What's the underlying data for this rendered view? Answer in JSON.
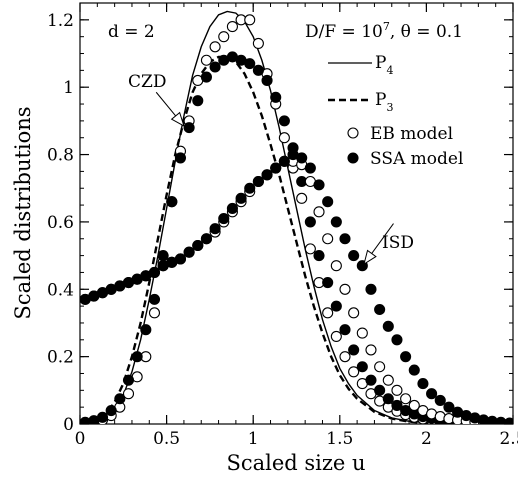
{
  "chart_data": {
    "type": "line",
    "xlabel": "Scaled size u",
    "ylabel": "Scaled distributions",
    "xlim": [
      0,
      2.5
    ],
    "ylim": [
      0,
      1.25
    ],
    "xticks": [
      "0",
      "0.5",
      "1",
      "1.5",
      "2",
      "2.5"
    ],
    "yticks": [
      "0",
      "0.2",
      "0.4",
      "0.6",
      "0.8",
      "1",
      "1.2"
    ],
    "x_tick_values": [
      0,
      0.5,
      1,
      1.5,
      2,
      2.5
    ],
    "y_tick_values": [
      0,
      0.2,
      0.4,
      0.6,
      0.8,
      1,
      1.2
    ],
    "minor_x_step": 0.1,
    "minor_y_step": 0.05,
    "legend_position": "top-right",
    "annotations": {
      "d_label": "d = 2",
      "params_prefix": "D/F = 10",
      "params_exp": "7",
      "params_suffix": ", θ = 0.1",
      "czd": "CZD",
      "isd": "ISD"
    },
    "annotation_arrows": [
      {
        "label": "CZD",
        "x1": 0.44,
        "y1": 0.985,
        "x2": 0.6,
        "y2": 0.885
      },
      {
        "label": "ISD",
        "x1": 1.81,
        "y1": 0.595,
        "x2": 1.64,
        "y2": 0.475
      }
    ],
    "series": [
      {
        "name": "P",
        "sub": "4",
        "style": "solid",
        "x": [
          0,
          0.05,
          0.1,
          0.15,
          0.2,
          0.25,
          0.3,
          0.35,
          0.4,
          0.45,
          0.5,
          0.55,
          0.6,
          0.65,
          0.7,
          0.75,
          0.8,
          0.85,
          0.9,
          0.95,
          1.0,
          1.05,
          1.1,
          1.15,
          1.2,
          1.25,
          1.3,
          1.35,
          1.4,
          1.45,
          1.5,
          1.55,
          1.6,
          1.7,
          1.8,
          1.9,
          2.0,
          2.1,
          2.2,
          2.3,
          2.4,
          2.5
        ],
        "y": [
          0,
          0.001,
          0.005,
          0.015,
          0.04,
          0.085,
          0.155,
          0.25,
          0.37,
          0.5,
          0.64,
          0.78,
          0.915,
          1.035,
          1.12,
          1.18,
          1.215,
          1.225,
          1.22,
          1.195,
          1.15,
          1.08,
          0.99,
          0.88,
          0.76,
          0.64,
          0.52,
          0.41,
          0.31,
          0.23,
          0.165,
          0.12,
          0.085,
          0.04,
          0.018,
          0.008,
          0.004,
          0.002,
          0.001,
          0.0005,
          0.0002,
          0
        ]
      },
      {
        "name": "P",
        "sub": "3",
        "style": "dashed",
        "x": [
          0,
          0.05,
          0.1,
          0.15,
          0.2,
          0.25,
          0.3,
          0.35,
          0.4,
          0.45,
          0.5,
          0.55,
          0.6,
          0.65,
          0.7,
          0.75,
          0.8,
          0.85,
          0.9,
          0.95,
          1.0,
          1.05,
          1.1,
          1.15,
          1.2,
          1.25,
          1.3,
          1.35,
          1.4,
          1.45,
          1.5,
          1.55,
          1.6,
          1.7,
          1.8,
          1.9,
          2.0,
          2.1,
          2.2,
          2.3,
          2.4,
          2.5
        ],
        "y": [
          0,
          0.002,
          0.01,
          0.03,
          0.065,
          0.12,
          0.2,
          0.3,
          0.42,
          0.55,
          0.68,
          0.8,
          0.9,
          0.985,
          1.04,
          1.075,
          1.09,
          1.09,
          1.075,
          1.04,
          0.985,
          0.915,
          0.83,
          0.74,
          0.64,
          0.54,
          0.44,
          0.35,
          0.27,
          0.2,
          0.145,
          0.105,
          0.075,
          0.036,
          0.016,
          0.007,
          0.003,
          0.001,
          0.0005,
          0.0002,
          0.0001,
          0
        ]
      },
      {
        "name": "EB model",
        "style": "open-circle",
        "x": [
          0.03,
          0.08,
          0.13,
          0.18,
          0.23,
          0.28,
          0.33,
          0.38,
          0.43,
          0.48,
          0.53,
          0.58,
          0.63,
          0.68,
          0.73,
          0.78,
          0.83,
          0.88,
          0.93,
          0.98,
          1.03,
          1.08,
          1.13,
          1.18,
          1.23,
          1.28,
          1.33,
          1.38,
          1.43,
          1.48,
          1.53,
          1.58,
          1.63,
          1.68,
          1.73,
          1.78,
          1.83,
          1.88,
          1.93,
          1.98,
          2.03,
          2.08,
          2.13,
          2.18,
          2.23,
          2.28,
          2.33,
          2.38,
          2.43,
          2.48
        ],
        "y": [
          0.003,
          0.005,
          0.012,
          0.025,
          0.05,
          0.09,
          0.14,
          0.2,
          0.33,
          0.48,
          0.66,
          0.81,
          0.9,
          1.02,
          1.08,
          1.12,
          1.15,
          1.18,
          1.2,
          1.2,
          1.13,
          1.04,
          0.95,
          0.85,
          0.76,
          0.67,
          0.52,
          0.42,
          0.33,
          0.26,
          0.2,
          0.155,
          0.12,
          0.09,
          0.068,
          0.05,
          0.038,
          0.028,
          0.02,
          0.015,
          0.011,
          0.008,
          0.006,
          0.004,
          0.003,
          0.002,
          0.002,
          0.001,
          0.001,
          0.001
        ]
      },
      {
        "name": "SSA model",
        "style": "filled-circle",
        "x": [
          0.03,
          0.08,
          0.13,
          0.18,
          0.23,
          0.28,
          0.33,
          0.38,
          0.43,
          0.48,
          0.53,
          0.58,
          0.63,
          0.68,
          0.73,
          0.78,
          0.83,
          0.88,
          0.93,
          0.98,
          1.03,
          1.08,
          1.13,
          1.18,
          1.23,
          1.28,
          1.33,
          1.38,
          1.43,
          1.48,
          1.53,
          1.58,
          1.63,
          1.68,
          1.73,
          1.78,
          1.83,
          1.88,
          1.93,
          1.98,
          2.03,
          2.08,
          2.13,
          2.18,
          2.23,
          2.28,
          2.33,
          2.38,
          2.43,
          2.48
        ],
        "y": [
          0.005,
          0.01,
          0.02,
          0.04,
          0.075,
          0.13,
          0.2,
          0.28,
          0.37,
          0.5,
          0.66,
          0.79,
          0.88,
          0.96,
          1.03,
          1.06,
          1.08,
          1.09,
          1.08,
          1.07,
          1.05,
          1.02,
          0.97,
          0.9,
          0.82,
          0.72,
          0.6,
          0.5,
          0.42,
          0.35,
          0.28,
          0.22,
          0.17,
          0.13,
          0.1,
          0.075,
          0.055,
          0.04,
          0.03,
          0.022,
          0.016,
          0.012,
          0.009,
          0.006,
          0.004,
          0.003,
          0.002,
          0.002,
          0.001,
          0.001
        ]
      },
      {
        "name": "EB model (ISD)",
        "style": "open-circle",
        "x": [
          0.03,
          0.08,
          0.13,
          0.18,
          0.23,
          0.28,
          0.33,
          0.38,
          0.43,
          0.48,
          0.53,
          0.58,
          0.63,
          0.68,
          0.73,
          0.78,
          0.83,
          0.88,
          0.93,
          0.98,
          1.03,
          1.08,
          1.13,
          1.18,
          1.23,
          1.28,
          1.33,
          1.38,
          1.43,
          1.48,
          1.53,
          1.58,
          1.63,
          1.68,
          1.73,
          1.78,
          1.83,
          1.88,
          1.93,
          1.98,
          2.03,
          2.08,
          2.13,
          2.18,
          2.23,
          2.28,
          2.33,
          2.38,
          2.43,
          2.48
        ],
        "y": [
          0.37,
          0.38,
          0.39,
          0.4,
          0.41,
          0.42,
          0.43,
          0.44,
          0.45,
          0.47,
          0.48,
          0.49,
          0.51,
          0.53,
          0.55,
          0.57,
          0.6,
          0.63,
          0.66,
          0.69,
          0.72,
          0.74,
          0.76,
          0.78,
          0.78,
          0.77,
          0.72,
          0.63,
          0.55,
          0.47,
          0.4,
          0.33,
          0.27,
          0.22,
          0.17,
          0.13,
          0.1,
          0.075,
          0.055,
          0.04,
          0.03,
          0.022,
          0.016,
          0.012,
          0.009,
          0.006,
          0.004,
          0.003,
          0.002,
          0.001
        ]
      },
      {
        "name": "SSA model (ISD)",
        "style": "filled-circle",
        "x": [
          0.03,
          0.08,
          0.13,
          0.18,
          0.23,
          0.28,
          0.33,
          0.38,
          0.43,
          0.48,
          0.53,
          0.58,
          0.63,
          0.68,
          0.73,
          0.78,
          0.83,
          0.88,
          0.93,
          0.98,
          1.03,
          1.08,
          1.13,
          1.18,
          1.23,
          1.28,
          1.33,
          1.38,
          1.43,
          1.48,
          1.53,
          1.58,
          1.63,
          1.68,
          1.73,
          1.78,
          1.83,
          1.88,
          1.93,
          1.98,
          2.03,
          2.08,
          2.13,
          2.18,
          2.23,
          2.28,
          2.33,
          2.38,
          2.43,
          2.48
        ],
        "y": [
          0.37,
          0.38,
          0.39,
          0.4,
          0.41,
          0.42,
          0.43,
          0.44,
          0.45,
          0.47,
          0.48,
          0.49,
          0.51,
          0.53,
          0.55,
          0.58,
          0.61,
          0.64,
          0.67,
          0.7,
          0.72,
          0.74,
          0.76,
          0.78,
          0.8,
          0.79,
          0.76,
          0.71,
          0.66,
          0.6,
          0.55,
          0.5,
          0.47,
          0.4,
          0.34,
          0.29,
          0.25,
          0.2,
          0.16,
          0.12,
          0.09,
          0.07,
          0.05,
          0.035,
          0.025,
          0.018,
          0.012,
          0.008,
          0.005,
          0.003
        ]
      }
    ]
  }
}
